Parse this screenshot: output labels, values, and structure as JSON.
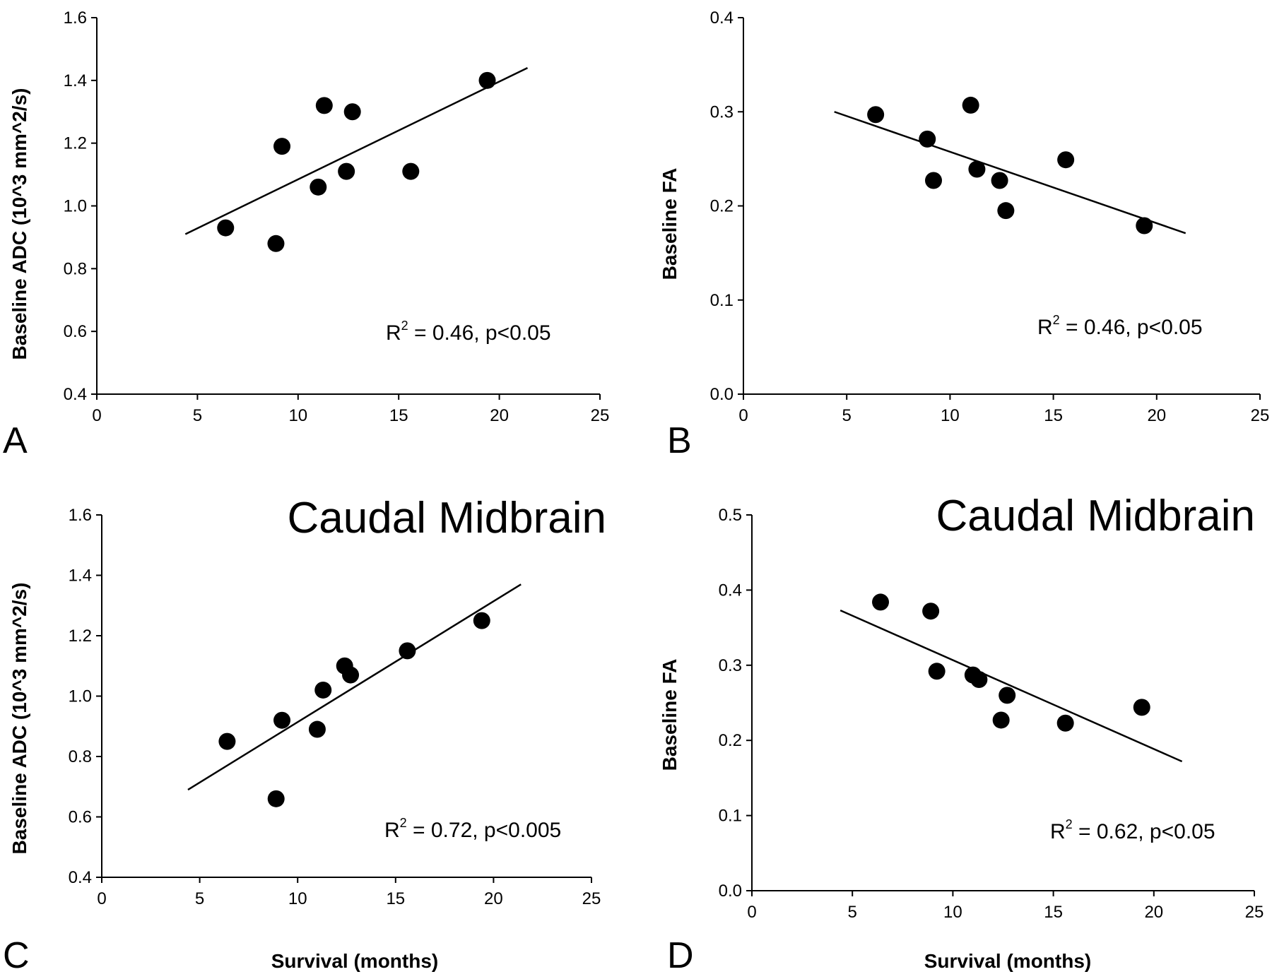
{
  "chart_data": [
    {
      "type": "scatter",
      "panel_label": "A",
      "title": "",
      "xlabel": "",
      "ylabel": "Baseline ADC (10^3 mm^2/s)",
      "xlim": [
        0,
        25
      ],
      "ylim": [
        0.4,
        1.6
      ],
      "xticks": [
        "0",
        "5",
        "10",
        "15",
        "20",
        "25"
      ],
      "yticks": [
        "0.4",
        "0.6",
        "0.8",
        "1.0",
        "1.2",
        "1.4",
        "1.6"
      ],
      "points": [
        {
          "x": 6.4,
          "y": 0.93
        },
        {
          "x": 8.9,
          "y": 0.88
        },
        {
          "x": 9.2,
          "y": 1.19
        },
        {
          "x": 11.0,
          "y": 1.06
        },
        {
          "x": 11.3,
          "y": 1.32
        },
        {
          "x": 12.4,
          "y": 1.11
        },
        {
          "x": 12.7,
          "y": 1.3
        },
        {
          "x": 15.6,
          "y": 1.11
        },
        {
          "x": 19.4,
          "y": 1.4
        }
      ],
      "fit_line": {
        "x": [
          4.4,
          21.4
        ],
        "y": [
          0.91,
          1.44
        ]
      },
      "annotation": {
        "r2_prefix": "R",
        "r2_sup": "2",
        "text": " = 0.46, p<0.05"
      }
    },
    {
      "type": "scatter",
      "panel_label": "B",
      "title": "",
      "xlabel": "",
      "ylabel": "Baseline FA",
      "xlim": [
        0,
        25
      ],
      "ylim": [
        0.0,
        0.4
      ],
      "xticks": [
        "0",
        "5",
        "10",
        "15",
        "20",
        "25"
      ],
      "yticks": [
        "0.0",
        "0.1",
        "0.2",
        "0.3",
        "0.4"
      ],
      "points": [
        {
          "x": 6.4,
          "y": 0.297
        },
        {
          "x": 8.9,
          "y": 0.271
        },
        {
          "x": 9.2,
          "y": 0.227
        },
        {
          "x": 11.0,
          "y": 0.307
        },
        {
          "x": 11.3,
          "y": 0.239
        },
        {
          "x": 12.4,
          "y": 0.227
        },
        {
          "x": 12.7,
          "y": 0.195
        },
        {
          "x": 15.6,
          "y": 0.249
        },
        {
          "x": 19.4,
          "y": 0.179
        }
      ],
      "fit_line": {
        "x": [
          4.4,
          21.4
        ],
        "y": [
          0.3,
          0.171
        ]
      },
      "annotation": {
        "r2_prefix": "R",
        "r2_sup": "2",
        "text": " = 0.46, p<0.05"
      }
    },
    {
      "type": "scatter",
      "panel_label": "C",
      "title": "Caudal Midbrain",
      "xlabel": "Survival (months)",
      "ylabel": "Baseline ADC (10^3 mm^2/s)",
      "xlim": [
        0,
        25
      ],
      "ylim": [
        0.4,
        1.6
      ],
      "xticks": [
        "0",
        "5",
        "10",
        "15",
        "20",
        "25"
      ],
      "yticks": [
        "0.4",
        "0.6",
        "0.8",
        "1.0",
        "1.2",
        "1.4",
        "1.6"
      ],
      "points": [
        {
          "x": 6.4,
          "y": 0.85
        },
        {
          "x": 8.9,
          "y": 0.66
        },
        {
          "x": 9.2,
          "y": 0.92
        },
        {
          "x": 11.0,
          "y": 0.89
        },
        {
          "x": 11.3,
          "y": 1.02
        },
        {
          "x": 12.4,
          "y": 1.1
        },
        {
          "x": 12.7,
          "y": 1.07
        },
        {
          "x": 15.6,
          "y": 1.15
        },
        {
          "x": 19.4,
          "y": 1.25
        }
      ],
      "fit_line": {
        "x": [
          4.4,
          21.4
        ],
        "y": [
          0.69,
          1.37
        ]
      },
      "annotation": {
        "r2_prefix": "R",
        "r2_sup": "2",
        "text": " = 0.72, p<0.005"
      }
    },
    {
      "type": "scatter",
      "panel_label": "D",
      "title": "Caudal Midbrain",
      "xlabel": "Survival (months)",
      "ylabel": "Baseline FA",
      "xlim": [
        0,
        25
      ],
      "ylim": [
        0.0,
        0.5
      ],
      "xticks": [
        "0",
        "5",
        "10",
        "15",
        "20",
        "25"
      ],
      "yticks": [
        "0.0",
        "0.1",
        "0.2",
        "0.3",
        "0.4",
        "0.5"
      ],
      "points": [
        {
          "x": 6.4,
          "y": 0.384
        },
        {
          "x": 8.9,
          "y": 0.372
        },
        {
          "x": 9.2,
          "y": 0.292
        },
        {
          "x": 11.0,
          "y": 0.287
        },
        {
          "x": 11.3,
          "y": 0.281
        },
        {
          "x": 12.4,
          "y": 0.227
        },
        {
          "x": 12.7,
          "y": 0.26
        },
        {
          "x": 15.6,
          "y": 0.223
        },
        {
          "x": 19.4,
          "y": 0.244
        }
      ],
      "fit_line": {
        "x": [
          4.4,
          21.4
        ],
        "y": [
          0.373,
          0.172
        ]
      },
      "annotation": {
        "r2_prefix": "R",
        "r2_sup": "2",
        "text": " = 0.62, p<0.05"
      }
    }
  ]
}
